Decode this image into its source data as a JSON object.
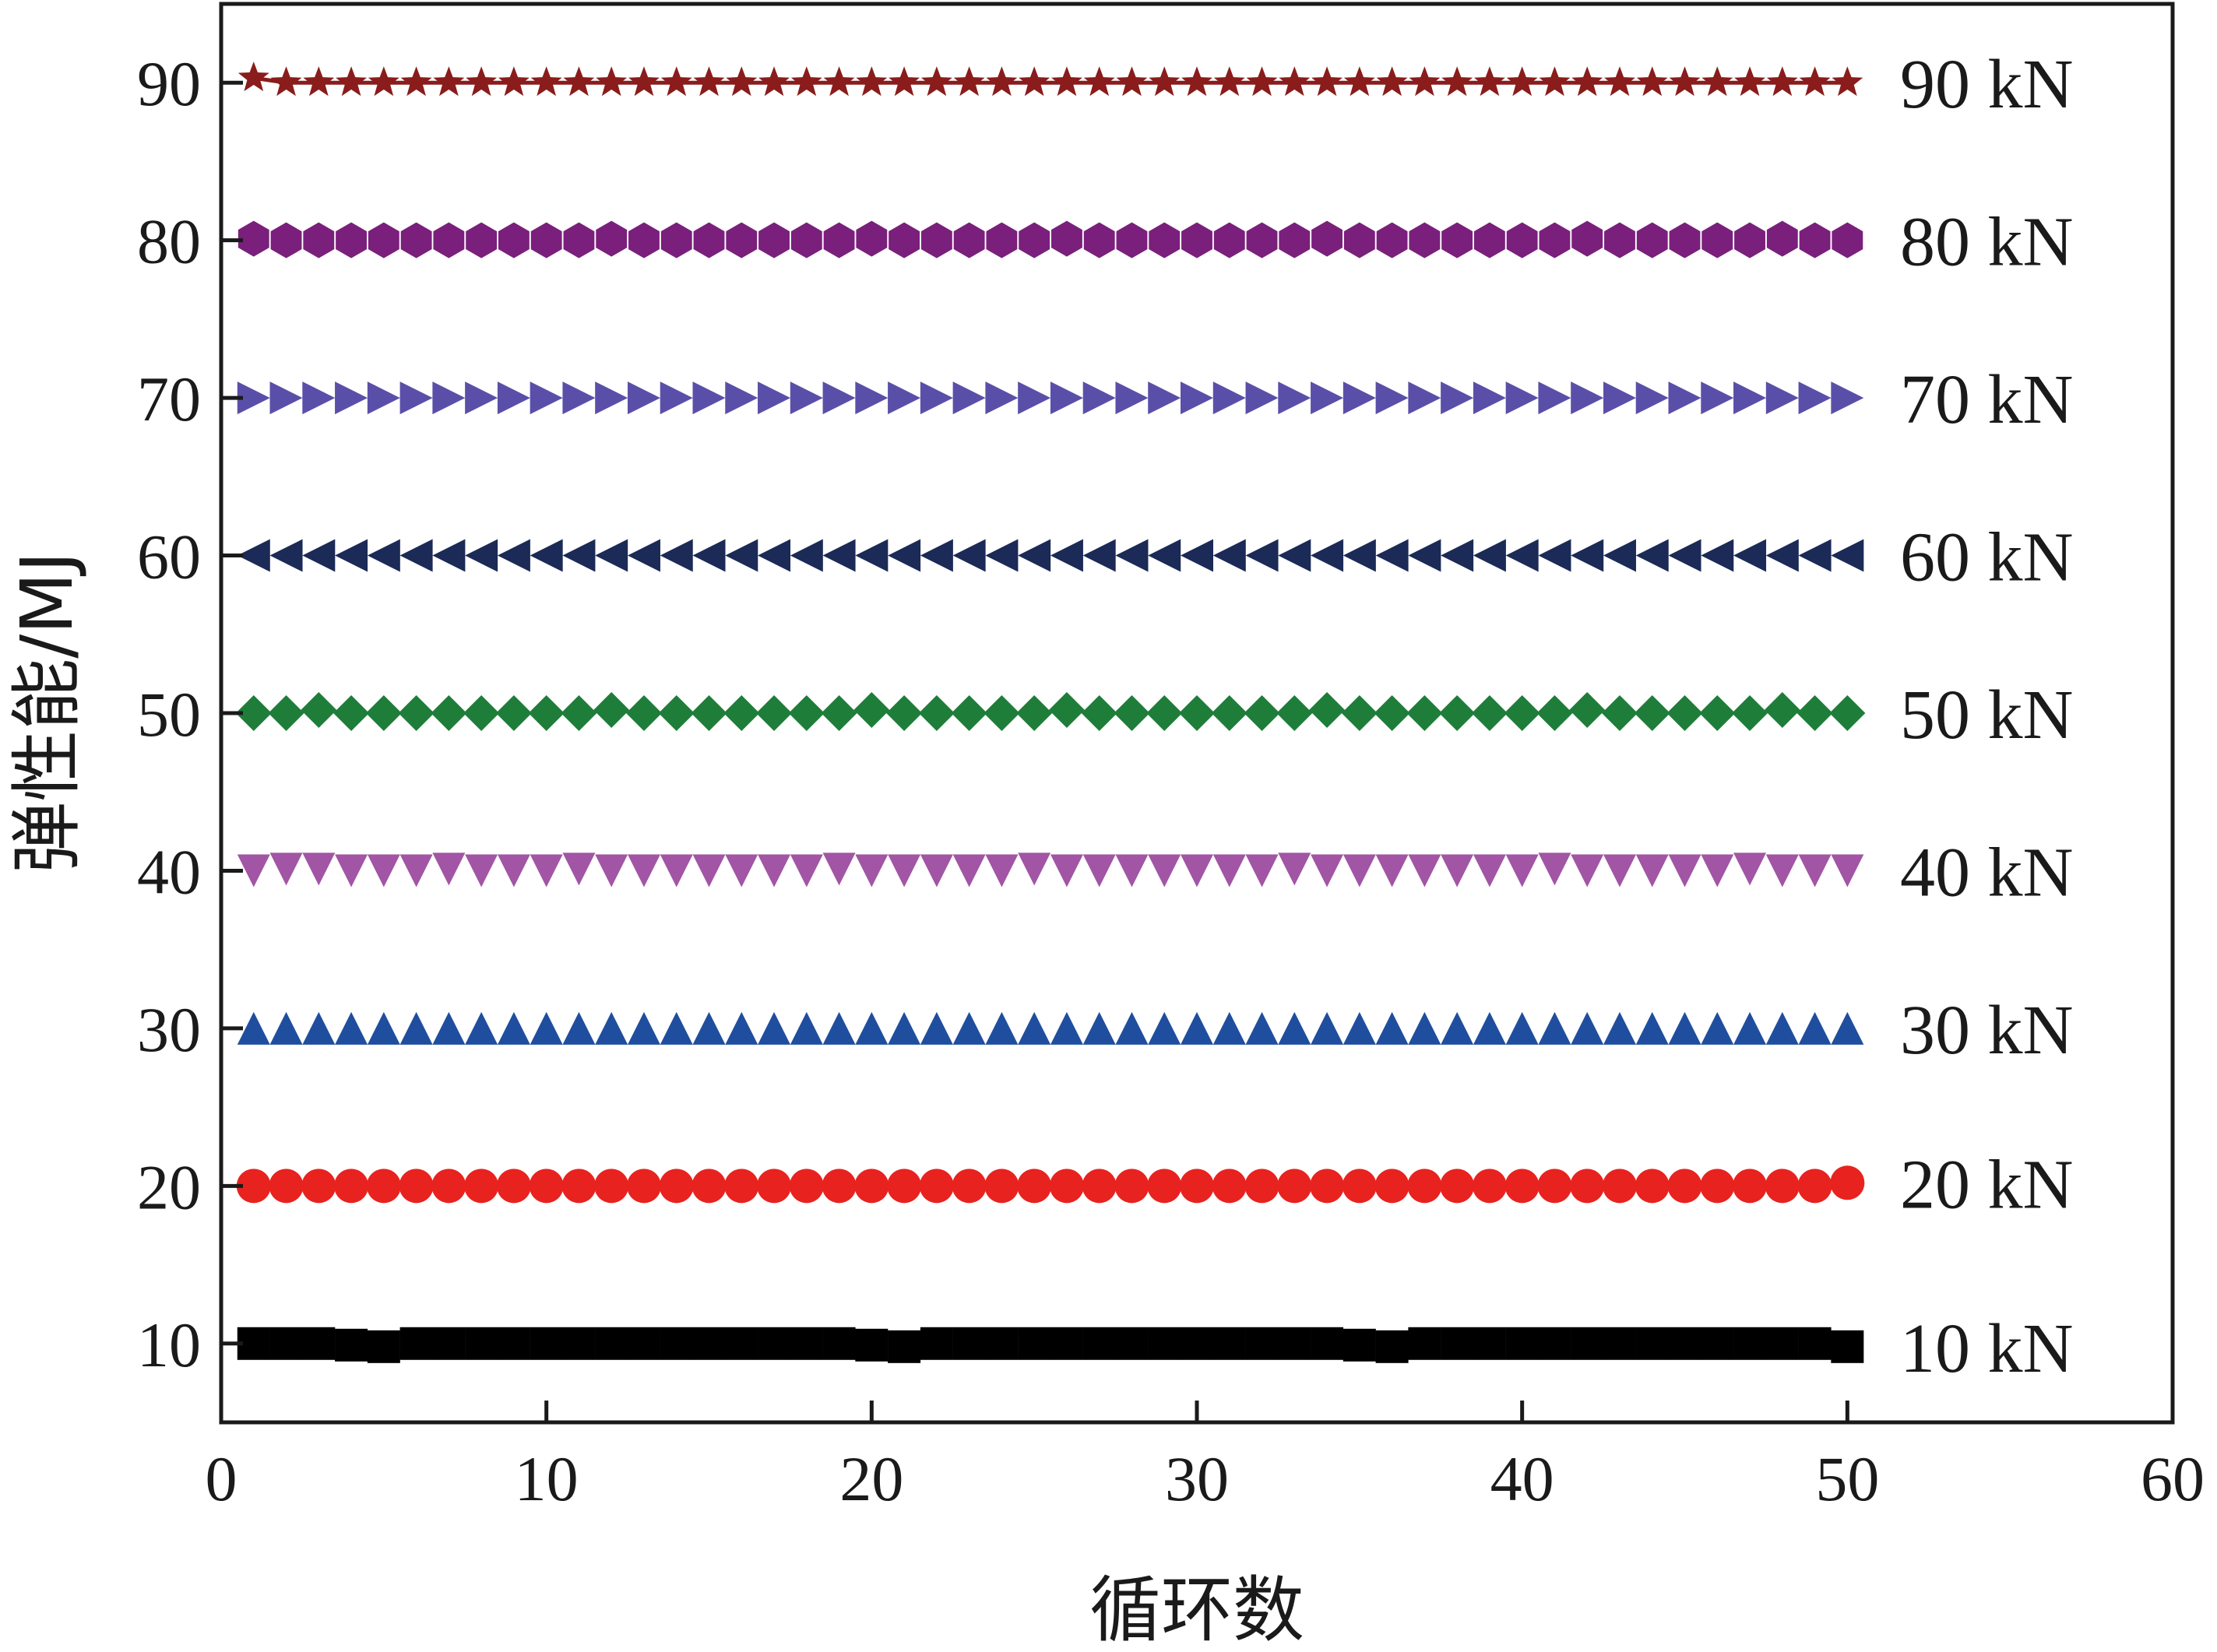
{
  "chart_data": {
    "type": "line",
    "title": "",
    "xlabel": "循环数",
    "ylabel": "弹性能/MJ",
    "xlim": [
      0,
      60
    ],
    "ylim": [
      5,
      95
    ],
    "xticks": [
      0,
      10,
      20,
      30,
      40,
      50,
      60
    ],
    "yticks": [
      10,
      20,
      30,
      40,
      50,
      60,
      70,
      80,
      90
    ],
    "xtick_labels": [
      "0",
      "10",
      "20",
      "30",
      "40",
      "50",
      "60"
    ],
    "ytick_labels": [
      "10",
      "20",
      "30",
      "40",
      "50",
      "60",
      "70",
      "80",
      "90"
    ],
    "grid": false,
    "legend": "none",
    "series_x": {
      "start": 1,
      "end": 50,
      "step": 1
    },
    "series": [
      {
        "name": "10 kN",
        "label": "10 kN",
        "marker": "square",
        "color": "#000000",
        "line": false,
        "values": [
          10,
          10,
          10,
          9.9,
          9.8,
          10,
          10,
          10,
          10,
          10,
          10,
          10,
          10,
          10,
          10,
          10,
          10,
          10,
          10,
          9.9,
          9.8,
          10,
          10,
          10,
          10,
          10,
          10,
          10,
          10,
          10,
          10,
          10,
          10,
          10,
          9.9,
          9.8,
          10,
          10,
          10,
          10,
          10,
          10,
          10,
          10,
          10,
          10,
          10,
          10,
          10,
          9.8
        ]
      },
      {
        "name": "20 kN",
        "label": "20 kN",
        "marker": "circle",
        "color": "#e8221f",
        "line": false,
        "values": [
          20,
          20,
          20,
          20,
          20,
          20,
          20,
          20,
          20,
          20,
          20,
          20,
          20,
          20,
          20,
          20,
          20,
          20,
          20,
          20,
          20,
          20,
          20,
          20,
          20,
          20,
          20,
          20,
          20,
          20,
          20,
          20,
          20,
          20,
          20,
          20,
          20,
          20,
          20,
          20,
          20,
          20,
          20,
          20,
          20,
          20,
          20,
          20,
          20,
          20.2
        ]
      },
      {
        "name": "30 kN",
        "label": "30 kN",
        "marker": "triangle-up",
        "color": "#1f4e9e",
        "line": false,
        "values": [
          30,
          30,
          30,
          30,
          30,
          30,
          30,
          30,
          30,
          30,
          30,
          30,
          30,
          30,
          30,
          30,
          30,
          30,
          30,
          30,
          30,
          30,
          30,
          30,
          30,
          30,
          30,
          30,
          30,
          30,
          30,
          30,
          30,
          30,
          30,
          30,
          30,
          30,
          30,
          30,
          30,
          30,
          30,
          30,
          30,
          30,
          30,
          30,
          30,
          30
        ]
      },
      {
        "name": "40 kN",
        "label": "40 kN",
        "marker": "triangle-down",
        "color": "#a155a4",
        "line": false,
        "values": [
          40,
          40.1,
          40.1,
          40,
          40,
          40,
          40.1,
          40,
          40,
          40,
          40.1,
          40,
          40,
          40,
          40,
          40,
          40,
          40,
          40.1,
          40,
          40,
          40,
          40,
          40,
          40.1,
          40,
          40,
          40,
          40,
          40,
          40,
          40,
          40.1,
          40,
          40,
          40,
          40,
          40,
          40,
          40,
          40.1,
          40,
          40,
          40,
          40,
          40,
          40.1,
          40,
          40,
          40
        ]
      },
      {
        "name": "50 kN",
        "label": "50 kN",
        "marker": "diamond",
        "color": "#1f7d3a",
        "line": false,
        "values": [
          50,
          50,
          50.2,
          50,
          50,
          50,
          50,
          50,
          50,
          50,
          50,
          50.2,
          50,
          50,
          50,
          50,
          50,
          50,
          50,
          50.2,
          50,
          50,
          50,
          50,
          50,
          50.2,
          50,
          50,
          50,
          50,
          50,
          50,
          50,
          50.2,
          50,
          50,
          50,
          50,
          50,
          50,
          50,
          50.2,
          50,
          50,
          50,
          50,
          50,
          50.2,
          50,
          50
        ]
      },
      {
        "name": "60 kN",
        "label": "60 kN",
        "marker": "triangle-left",
        "color": "#1b2a56",
        "line": false,
        "values": [
          60,
          60,
          60,
          60,
          60,
          60,
          60,
          60,
          60,
          60,
          60,
          60,
          60,
          60,
          60,
          60,
          60,
          60,
          60,
          60,
          60,
          60,
          60,
          60,
          60,
          60,
          60,
          60,
          60,
          60,
          60,
          60,
          60,
          60,
          60,
          60,
          60,
          60,
          60,
          60,
          60,
          60,
          60,
          60,
          60,
          60,
          60,
          60,
          60,
          60
        ]
      },
      {
        "name": "70 kN",
        "label": "70 kN",
        "marker": "triangle-right",
        "color": "#5a4fa8",
        "line": false,
        "values": [
          70,
          70,
          70,
          70,
          70,
          70,
          70,
          70,
          70,
          70,
          70,
          70,
          70,
          70,
          70,
          70,
          70,
          70,
          70,
          70,
          70,
          70,
          70,
          70,
          70,
          70,
          70,
          70,
          70,
          70,
          70,
          70,
          70,
          70,
          70,
          70,
          70,
          70,
          70,
          70,
          70,
          70,
          70,
          70,
          70,
          70,
          70,
          70,
          70,
          70
        ]
      },
      {
        "name": "80 kN",
        "label": "80 kN",
        "marker": "hexagon",
        "color": "#7a1f7c",
        "line": false,
        "values": [
          80.1,
          80,
          80,
          80,
          80,
          80,
          80,
          80,
          80,
          80,
          80,
          80.1,
          80,
          80,
          80,
          80,
          80,
          80,
          80,
          80.1,
          80,
          80,
          80,
          80,
          80,
          80.1,
          80,
          80,
          80,
          80,
          80,
          80,
          80,
          80.1,
          80,
          80,
          80,
          80,
          80,
          80,
          80,
          80.1,
          80,
          80,
          80,
          80,
          80,
          80.1,
          80,
          80
        ]
      },
      {
        "name": "90 kN",
        "label": "90 kN",
        "marker": "star",
        "color": "#8a1c1c",
        "line": true,
        "values": [
          90.3,
          90,
          90,
          90,
          90,
          90,
          90,
          90,
          90,
          90,
          90,
          90,
          90,
          90,
          90,
          90,
          90,
          90,
          90,
          90,
          90,
          90,
          90,
          90,
          90,
          90,
          90,
          90,
          90,
          90,
          90,
          90,
          90,
          90,
          90,
          90,
          90,
          90,
          90,
          90,
          90,
          90,
          90,
          90,
          90,
          90,
          90,
          90,
          90,
          90
        ]
      }
    ]
  }
}
